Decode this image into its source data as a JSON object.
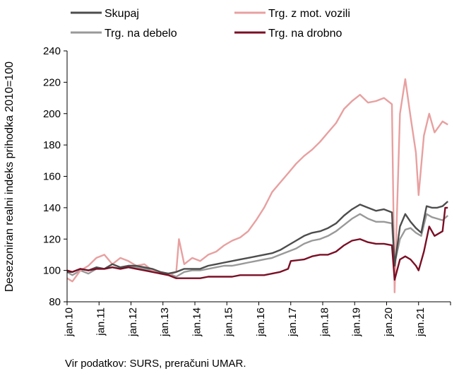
{
  "chart_data": {
    "type": "line",
    "title": "",
    "ylabel": "Desezoniran realni indeks prihodka 2010=100",
    "xlabel": "",
    "ylim": [
      80,
      240
    ],
    "yticks": [
      80,
      100,
      120,
      140,
      160,
      180,
      200,
      220,
      240
    ],
    "xticks": [
      "jan.10",
      "jan.11",
      "jan.12",
      "jan.13",
      "jan.14",
      "jan.15",
      "jan.16",
      "jan.17",
      "jan.18",
      "jan.19",
      "jan.20",
      "jan.21"
    ],
    "grid": false,
    "legend_position": "top",
    "x_start": "2010-01",
    "x_end": "2021-12",
    "series": [
      {
        "name": "Skupaj",
        "color": "#4d4d4d",
        "points": [
          [
            "2010-01",
            99
          ],
          [
            "2010-03",
            99
          ],
          [
            "2010-06",
            101
          ],
          [
            "2010-09",
            100
          ],
          [
            "2010-12",
            102
          ],
          [
            "2011-03",
            101
          ],
          [
            "2011-06",
            104
          ],
          [
            "2011-09",
            102
          ],
          [
            "2011-12",
            103
          ],
          [
            "2012-03",
            103
          ],
          [
            "2012-06",
            102
          ],
          [
            "2012-09",
            101
          ],
          [
            "2012-12",
            99
          ],
          [
            "2013-03",
            98
          ],
          [
            "2013-06",
            99
          ],
          [
            "2013-09",
            101
          ],
          [
            "2013-12",
            101
          ],
          [
            "2014-03",
            101
          ],
          [
            "2014-06",
            103
          ],
          [
            "2014-09",
            104
          ],
          [
            "2014-12",
            105
          ],
          [
            "2015-03",
            106
          ],
          [
            "2015-06",
            107
          ],
          [
            "2015-09",
            108
          ],
          [
            "2015-12",
            109
          ],
          [
            "2016-03",
            110
          ],
          [
            "2016-06",
            111
          ],
          [
            "2016-09",
            113
          ],
          [
            "2016-12",
            116
          ],
          [
            "2017-03",
            119
          ],
          [
            "2017-06",
            122
          ],
          [
            "2017-09",
            124
          ],
          [
            "2017-12",
            125
          ],
          [
            "2018-03",
            127
          ],
          [
            "2018-06",
            130
          ],
          [
            "2018-09",
            135
          ],
          [
            "2018-12",
            139
          ],
          [
            "2019-03",
            142
          ],
          [
            "2019-06",
            140
          ],
          [
            "2019-09",
            138
          ],
          [
            "2019-12",
            139
          ],
          [
            "2020-03",
            137
          ],
          [
            "2020-04",
            103
          ],
          [
            "2020-06",
            128
          ],
          [
            "2020-08",
            136
          ],
          [
            "2020-10",
            131
          ],
          [
            "2020-12",
            127
          ],
          [
            "2021-02",
            124
          ],
          [
            "2021-04",
            141
          ],
          [
            "2021-06",
            140
          ],
          [
            "2021-08",
            140
          ],
          [
            "2021-10",
            141
          ],
          [
            "2021-12",
            144
          ]
        ]
      },
      {
        "name": "Trg. z mot. vozili",
        "color": "#e8a0a0",
        "points": [
          [
            "2010-01",
            95
          ],
          [
            "2010-03",
            93
          ],
          [
            "2010-06",
            100
          ],
          [
            "2010-09",
            103
          ],
          [
            "2010-12",
            108
          ],
          [
            "2011-03",
            110
          ],
          [
            "2011-06",
            104
          ],
          [
            "2011-09",
            108
          ],
          [
            "2011-12",
            106
          ],
          [
            "2012-03",
            103
          ],
          [
            "2012-06",
            104
          ],
          [
            "2012-09",
            100
          ],
          [
            "2012-12",
            98
          ],
          [
            "2013-03",
            97
          ],
          [
            "2013-06",
            99
          ],
          [
            "2013-07",
            120
          ],
          [
            "2013-09",
            104
          ],
          [
            "2013-12",
            108
          ],
          [
            "2014-03",
            106
          ],
          [
            "2014-06",
            110
          ],
          [
            "2014-09",
            112
          ],
          [
            "2014-12",
            116
          ],
          [
            "2015-03",
            119
          ],
          [
            "2015-06",
            121
          ],
          [
            "2015-09",
            125
          ],
          [
            "2015-12",
            132
          ],
          [
            "2016-03",
            140
          ],
          [
            "2016-06",
            150
          ],
          [
            "2016-09",
            156
          ],
          [
            "2016-12",
            162
          ],
          [
            "2017-03",
            168
          ],
          [
            "2017-06",
            173
          ],
          [
            "2017-09",
            177
          ],
          [
            "2017-12",
            182
          ],
          [
            "2018-03",
            188
          ],
          [
            "2018-06",
            194
          ],
          [
            "2018-09",
            203
          ],
          [
            "2018-12",
            208
          ],
          [
            "2019-03",
            212
          ],
          [
            "2019-06",
            207
          ],
          [
            "2019-09",
            208
          ],
          [
            "2019-12",
            210
          ],
          [
            "2020-03",
            206
          ],
          [
            "2020-04",
            86
          ],
          [
            "2020-06",
            200
          ],
          [
            "2020-08",
            222
          ],
          [
            "2020-10",
            198
          ],
          [
            "2020-12",
            175
          ],
          [
            "2021-01",
            148
          ],
          [
            "2021-03",
            186
          ],
          [
            "2021-05",
            200
          ],
          [
            "2021-07",
            188
          ],
          [
            "2021-10",
            195
          ],
          [
            "2021-12",
            193
          ]
        ]
      },
      {
        "name": "Trg. na debelo",
        "color": "#999999",
        "points": [
          [
            "2010-01",
            99
          ],
          [
            "2010-03",
            97
          ],
          [
            "2010-06",
            100
          ],
          [
            "2010-09",
            98
          ],
          [
            "2010-12",
            101
          ],
          [
            "2011-03",
            101
          ],
          [
            "2011-06",
            102
          ],
          [
            "2011-09",
            101
          ],
          [
            "2011-12",
            102
          ],
          [
            "2012-03",
            102
          ],
          [
            "2012-06",
            101
          ],
          [
            "2012-09",
            100
          ],
          [
            "2012-12",
            98
          ],
          [
            "2013-03",
            98
          ],
          [
            "2013-06",
            96
          ],
          [
            "2013-09",
            99
          ],
          [
            "2013-12",
            100
          ],
          [
            "2014-03",
            100
          ],
          [
            "2014-06",
            101
          ],
          [
            "2014-09",
            102
          ],
          [
            "2014-12",
            103
          ],
          [
            "2015-03",
            103
          ],
          [
            "2015-06",
            104
          ],
          [
            "2015-09",
            105
          ],
          [
            "2015-12",
            106
          ],
          [
            "2016-03",
            107
          ],
          [
            "2016-06",
            108
          ],
          [
            "2016-09",
            110
          ],
          [
            "2016-12",
            112
          ],
          [
            "2017-03",
            114
          ],
          [
            "2017-06",
            117
          ],
          [
            "2017-09",
            119
          ],
          [
            "2017-12",
            120
          ],
          [
            "2018-03",
            122
          ],
          [
            "2018-06",
            125
          ],
          [
            "2018-09",
            129
          ],
          [
            "2018-12",
            133
          ],
          [
            "2019-03",
            136
          ],
          [
            "2019-06",
            133
          ],
          [
            "2019-09",
            131
          ],
          [
            "2019-12",
            131
          ],
          [
            "2020-03",
            130
          ],
          [
            "2020-04",
            104
          ],
          [
            "2020-06",
            120
          ],
          [
            "2020-08",
            126
          ],
          [
            "2020-10",
            127
          ],
          [
            "2020-12",
            124
          ],
          [
            "2021-02",
            122
          ],
          [
            "2021-04",
            136
          ],
          [
            "2021-06",
            134
          ],
          [
            "2021-08",
            133
          ],
          [
            "2021-10",
            132
          ],
          [
            "2021-12",
            135
          ]
        ]
      },
      {
        "name": "Trg. na drobno",
        "color": "#7a0f25",
        "points": [
          [
            "2010-01",
            100
          ],
          [
            "2010-03",
            99
          ],
          [
            "2010-06",
            101
          ],
          [
            "2010-09",
            100
          ],
          [
            "2010-12",
            101
          ],
          [
            "2011-03",
            101
          ],
          [
            "2011-06",
            102
          ],
          [
            "2011-09",
            101
          ],
          [
            "2011-12",
            102
          ],
          [
            "2012-03",
            101
          ],
          [
            "2012-06",
            100
          ],
          [
            "2012-09",
            99
          ],
          [
            "2012-12",
            98
          ],
          [
            "2013-03",
            97
          ],
          [
            "2013-06",
            95
          ],
          [
            "2013-09",
            95
          ],
          [
            "2013-12",
            95
          ],
          [
            "2014-03",
            95
          ],
          [
            "2014-06",
            96
          ],
          [
            "2014-09",
            96
          ],
          [
            "2014-12",
            96
          ],
          [
            "2015-03",
            96
          ],
          [
            "2015-06",
            97
          ],
          [
            "2015-09",
            97
          ],
          [
            "2015-12",
            97
          ],
          [
            "2016-03",
            97
          ],
          [
            "2016-06",
            98
          ],
          [
            "2016-09",
            99
          ],
          [
            "2016-12",
            101
          ],
          [
            "2017-01",
            106
          ],
          [
            "2017-06",
            107
          ],
          [
            "2017-09",
            109
          ],
          [
            "2017-12",
            110
          ],
          [
            "2018-03",
            110
          ],
          [
            "2018-06",
            112
          ],
          [
            "2018-09",
            116
          ],
          [
            "2018-12",
            119
          ],
          [
            "2019-03",
            120
          ],
          [
            "2019-06",
            118
          ],
          [
            "2019-09",
            117
          ],
          [
            "2019-12",
            117
          ],
          [
            "2020-03",
            116
          ],
          [
            "2020-04",
            94
          ],
          [
            "2020-06",
            107
          ],
          [
            "2020-08",
            109
          ],
          [
            "2020-10",
            107
          ],
          [
            "2020-12",
            103
          ],
          [
            "2021-01",
            100
          ],
          [
            "2021-03",
            112
          ],
          [
            "2021-05",
            128
          ],
          [
            "2021-07",
            122
          ],
          [
            "2021-10",
            125
          ],
          [
            "2021-11",
            140
          ],
          [
            "2021-12",
            140
          ]
        ]
      }
    ],
    "source": "Vir podatkov: SURS, preračuni UMAR."
  }
}
